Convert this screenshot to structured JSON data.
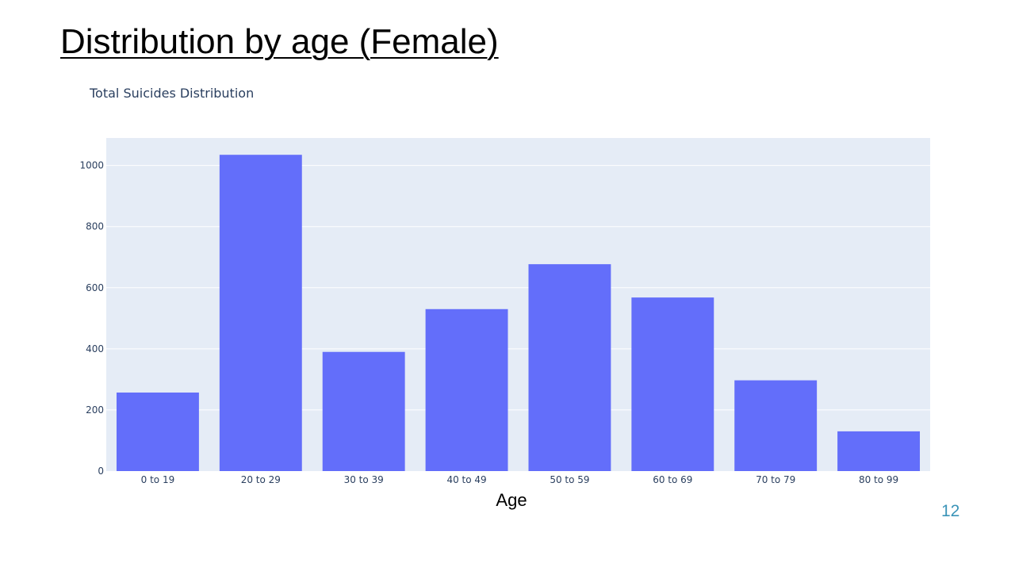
{
  "slide": {
    "title": "Distribution by age (Female)",
    "page_number": "12"
  },
  "colors": {
    "bar": "#636efa",
    "plot_bg": "#e5ecf6",
    "grid": "#ffffff",
    "tick_text": "#2a3f5f",
    "page_number": "#3b94b8"
  },
  "chart_data": {
    "type": "bar",
    "title": "Total Suicides Distribution",
    "xlabel": "Age",
    "ylabel": "",
    "categories": [
      "0 to 19",
      "20 to 29",
      "30 to 39",
      "40 to 49",
      "50 to 59",
      "60 to 69",
      "70 to 79",
      "80 to 99"
    ],
    "values": [
      257,
      1035,
      390,
      530,
      677,
      568,
      297,
      130
    ],
    "ylim": [
      0,
      1090
    ],
    "yticks": [
      0,
      200,
      400,
      600,
      800,
      1000
    ],
    "grid": true,
    "legend": false
  }
}
